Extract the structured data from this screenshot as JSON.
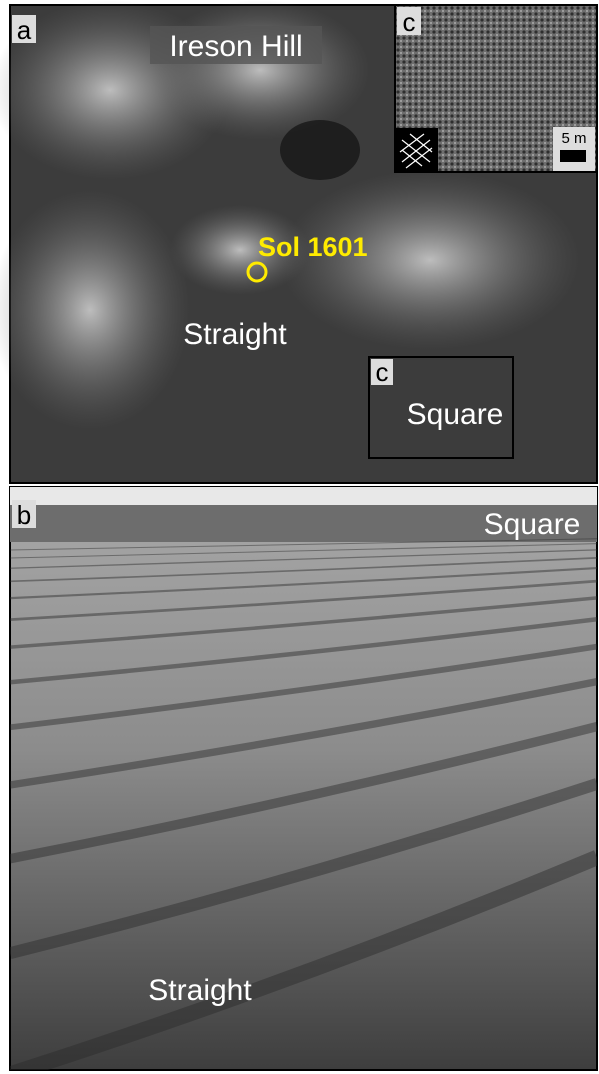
{
  "panel_a": {
    "label": "a",
    "hill": "Ireson Hill",
    "sol": "Sol 1601",
    "straight": "Straight",
    "box": {
      "label": "c",
      "text": "Square"
    }
  },
  "inset_c": {
    "label": "c",
    "scale": "5 m"
  },
  "panel_b": {
    "label": "b",
    "square": "Square",
    "straight": "Straight"
  }
}
